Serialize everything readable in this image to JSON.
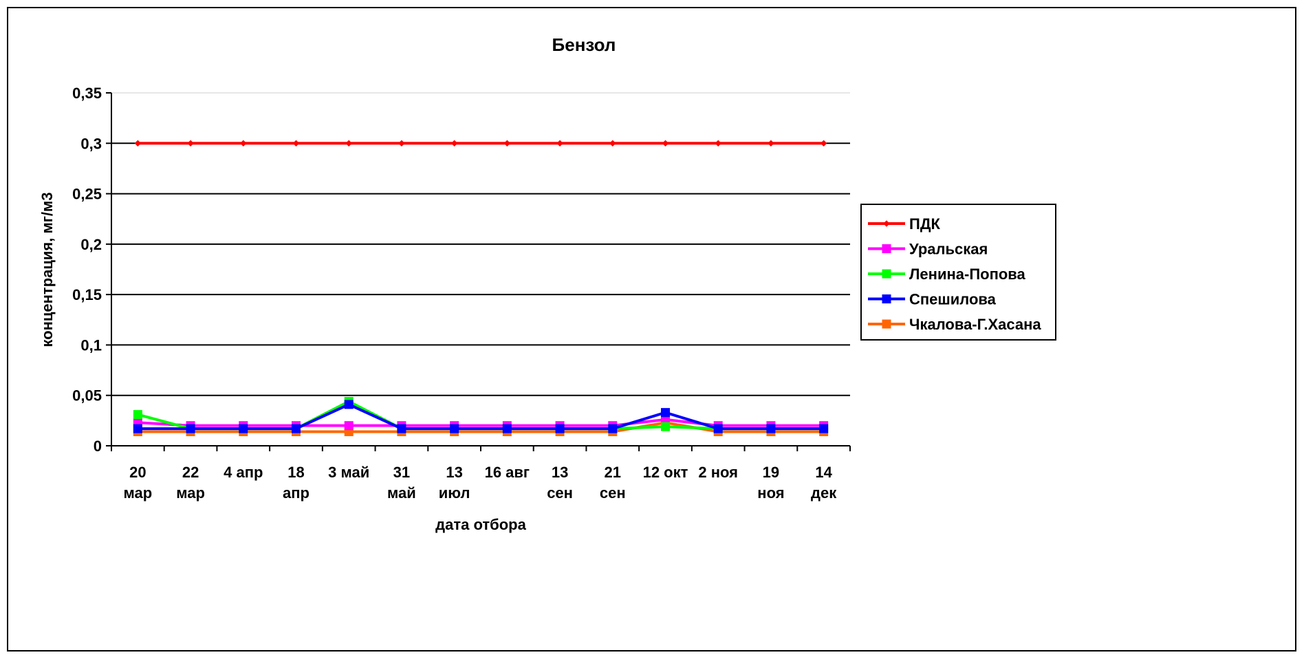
{
  "chart_data": {
    "type": "line",
    "title": "Бензол",
    "xlabel": "дата отбора",
    "ylabel": "концентрация, мг/м3",
    "ylim": [
      0,
      0.35
    ],
    "yticks": [
      "0",
      "0,05",
      "0,1",
      "0,15",
      "0,2",
      "0,25",
      "0,3",
      "0,35"
    ],
    "categories": [
      [
        "20",
        "мар"
      ],
      [
        "22",
        "мар"
      ],
      [
        "4 апр"
      ],
      [
        "18",
        "апр"
      ],
      [
        "3 май"
      ],
      [
        "31",
        "май"
      ],
      [
        "13",
        "июл"
      ],
      [
        "16 авг"
      ],
      [
        "13",
        "сен"
      ],
      [
        "21",
        "сен"
      ],
      [
        "12 окт"
      ],
      [
        "2 ноя"
      ],
      [
        "19",
        "ноя"
      ],
      [
        "14",
        "дек"
      ]
    ],
    "grid": true,
    "legend_position": "right",
    "series": [
      {
        "name": "ПДК",
        "color": "#ff0000",
        "marker": "diamond",
        "values": [
          0.3,
          0.3,
          0.3,
          0.3,
          0.3,
          0.3,
          0.3,
          0.3,
          0.3,
          0.3,
          0.3,
          0.3,
          0.3,
          0.3
        ]
      },
      {
        "name": "Уральская",
        "color": "#ff00ff",
        "marker": "square",
        "values": [
          0.023,
          0.02,
          0.02,
          0.02,
          0.02,
          0.02,
          0.02,
          0.02,
          0.02,
          0.02,
          0.026,
          0.02,
          0.02,
          0.02
        ]
      },
      {
        "name": "Ленина-Попова",
        "color": "#00ff00",
        "marker": "square",
        "values": [
          0.031,
          0.017,
          0.017,
          0.017,
          0.044,
          0.017,
          0.017,
          0.017,
          0.017,
          0.017,
          0.019,
          0.017,
          0.017,
          0.017
        ]
      },
      {
        "name": "Спешилова",
        "color": "#0000ff",
        "marker": "square",
        "values": [
          0.017,
          0.017,
          0.017,
          0.017,
          0.041,
          0.017,
          0.017,
          0.017,
          0.017,
          0.017,
          0.033,
          0.017,
          0.017,
          0.017
        ]
      },
      {
        "name": "Чкалова-Г.Хасана",
        "color": "#ff6600",
        "marker": "square",
        "values": [
          0.014,
          0.014,
          0.014,
          0.014,
          0.014,
          0.014,
          0.014,
          0.014,
          0.014,
          0.014,
          0.023,
          0.014,
          0.014,
          0.014
        ]
      }
    ]
  }
}
